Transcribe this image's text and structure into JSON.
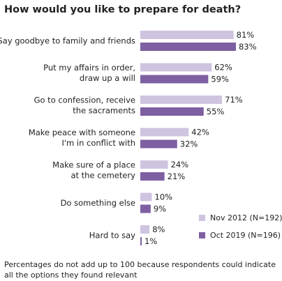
{
  "chart_data": {
    "type": "bar",
    "orientation": "horizontal",
    "title": "How would you like to prepare for death?",
    "categories": [
      [
        "Say goodbye to family and friends"
      ],
      [
        "Put my affairs in order,",
        "draw up a will"
      ],
      [
        "Go to confession, receive",
        "the sacraments"
      ],
      [
        "Make peace with someone",
        "I'm in conflict with"
      ],
      [
        "Make sure of a place",
        "at the cemetery"
      ],
      [
        "Do something else"
      ],
      [
        "Hard to say"
      ]
    ],
    "series": [
      {
        "name": "Nov 2012 (N=192)",
        "color": "#cfc4e0",
        "values": [
          81,
          62,
          71,
          42,
          24,
          10,
          8
        ]
      },
      {
        "name": "Oct 2019 (N=196)",
        "color": "#7e5fa2",
        "values": [
          83,
          59,
          55,
          32,
          21,
          9,
          1
        ]
      }
    ],
    "value_suffix": "%",
    "xlim": [
      0,
      100
    ],
    "grid": false,
    "legend_position": "bottom-right",
    "footnote": "Percentages do not add up to 100 because respondents could indicate all the options they found relevant"
  }
}
